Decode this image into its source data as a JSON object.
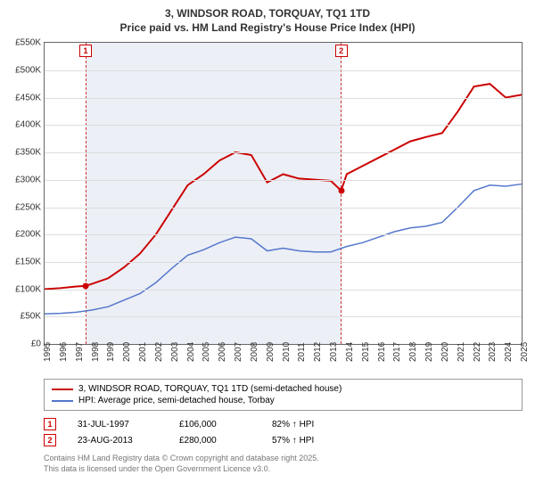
{
  "title_line1": "3, WINDSOR ROAD, TORQUAY, TQ1 1TD",
  "title_line2": "Price paid vs. HM Land Registry's House Price Index (HPI)",
  "chart": {
    "type": "line",
    "background_color": "#ffffff",
    "grid_color": "#dddddd",
    "border_color": "#666666",
    "ylim": [
      0,
      550
    ],
    "ytick_step": 50,
    "y_suffix": "K",
    "y_prefix": "£",
    "xlim": [
      1995,
      2025
    ],
    "xtick_step": 1,
    "shaded_band": {
      "start": 1997.58,
      "end": 2013.65,
      "fill": "rgba(200,210,230,0.35)",
      "dash_color": "#cc3333"
    },
    "series": [
      {
        "name": "price_paid",
        "label": "3, WINDSOR ROAD, TORQUAY, TQ1 1TD (semi-detached house)",
        "color": "#cc0000",
        "line_width": 2,
        "points": [
          [
            1995,
            100
          ],
          [
            1996,
            102
          ],
          [
            1997,
            105
          ],
          [
            1997.58,
            106
          ],
          [
            1998,
            110
          ],
          [
            1999,
            120
          ],
          [
            2000,
            140
          ],
          [
            2001,
            165
          ],
          [
            2002,
            200
          ],
          [
            2003,
            245
          ],
          [
            2004,
            290
          ],
          [
            2005,
            310
          ],
          [
            2006,
            335
          ],
          [
            2007,
            350
          ],
          [
            2008,
            345
          ],
          [
            2009,
            295
          ],
          [
            2010,
            310
          ],
          [
            2011,
            302
          ],
          [
            2012,
            300
          ],
          [
            2013,
            298
          ],
          [
            2013.65,
            280
          ],
          [
            2014,
            310
          ],
          [
            2015,
            325
          ],
          [
            2016,
            340
          ],
          [
            2017,
            355
          ],
          [
            2018,
            370
          ],
          [
            2019,
            378
          ],
          [
            2020,
            385
          ],
          [
            2021,
            425
          ],
          [
            2022,
            470
          ],
          [
            2023,
            475
          ],
          [
            2024,
            450
          ],
          [
            2025,
            455
          ]
        ]
      },
      {
        "name": "hpi",
        "label": "HPI: Average price, semi-detached house, Torbay",
        "color": "#5577cc",
        "line_width": 1.5,
        "points": [
          [
            1995,
            55
          ],
          [
            1996,
            56
          ],
          [
            1997,
            58
          ],
          [
            1998,
            62
          ],
          [
            1999,
            68
          ],
          [
            2000,
            80
          ],
          [
            2001,
            92
          ],
          [
            2002,
            112
          ],
          [
            2003,
            138
          ],
          [
            2004,
            162
          ],
          [
            2005,
            172
          ],
          [
            2006,
            185
          ],
          [
            2007,
            195
          ],
          [
            2008,
            192
          ],
          [
            2009,
            170
          ],
          [
            2010,
            175
          ],
          [
            2011,
            170
          ],
          [
            2012,
            168
          ],
          [
            2013,
            168
          ],
          [
            2014,
            178
          ],
          [
            2015,
            185
          ],
          [
            2016,
            195
          ],
          [
            2017,
            205
          ],
          [
            2018,
            212
          ],
          [
            2019,
            215
          ],
          [
            2020,
            222
          ],
          [
            2021,
            250
          ],
          [
            2022,
            280
          ],
          [
            2023,
            290
          ],
          [
            2024,
            288
          ],
          [
            2025,
            292
          ]
        ]
      }
    ],
    "markers": [
      {
        "id": "1",
        "x": 1997.58,
        "y": 106,
        "box_top": true
      },
      {
        "id": "2",
        "x": 2013.65,
        "y": 280,
        "box_top": true
      }
    ]
  },
  "legend": {
    "items": [
      {
        "color": "#cc0000",
        "label": "3, WINDSOR ROAD, TORQUAY, TQ1 1TD (semi-detached house)"
      },
      {
        "color": "#5577cc",
        "label": "HPI: Average price, semi-detached house, Torbay"
      }
    ]
  },
  "transactions": [
    {
      "id": "1",
      "date": "31-JUL-1997",
      "price": "£106,000",
      "delta": "82% ↑ HPI"
    },
    {
      "id": "2",
      "date": "23-AUG-2013",
      "price": "£280,000",
      "delta": "57% ↑ HPI"
    }
  ],
  "footer_line1": "Contains HM Land Registry data © Crown copyright and database right 2025.",
  "footer_line2": "This data is licensed under the Open Government Licence v3.0."
}
